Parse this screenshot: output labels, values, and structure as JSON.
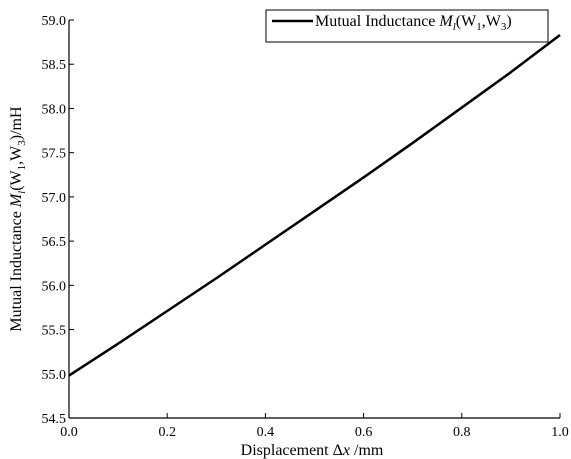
{
  "chart_data": {
    "type": "line",
    "xlabel": "Displacement Δx /mm",
    "ylabel": "Mutual Inductance Ml(W1,W3)/mH",
    "xlim": [
      0.0,
      1.0
    ],
    "ylim": [
      54.5,
      59.0
    ],
    "x_ticks": [
      "0.0",
      "0.2",
      "0.4",
      "0.6",
      "0.8",
      "1.0"
    ],
    "y_ticks": [
      "54.5",
      "55.0",
      "55.5",
      "56.0",
      "56.5",
      "57.0",
      "57.5",
      "58.0",
      "58.5",
      "59.0"
    ],
    "grid": false,
    "legend_position": "top-right",
    "series": [
      {
        "name": "Mutual Inductance Ml(W1,W3)",
        "color": "#000000",
        "x": [
          0.0,
          0.1,
          0.2,
          0.3,
          0.4,
          0.5,
          0.6,
          0.7,
          0.8,
          0.9,
          1.0
        ],
        "y": [
          54.98,
          55.34,
          55.71,
          56.08,
          56.46,
          56.84,
          57.22,
          57.61,
          58.01,
          58.41,
          58.83
        ]
      }
    ]
  }
}
